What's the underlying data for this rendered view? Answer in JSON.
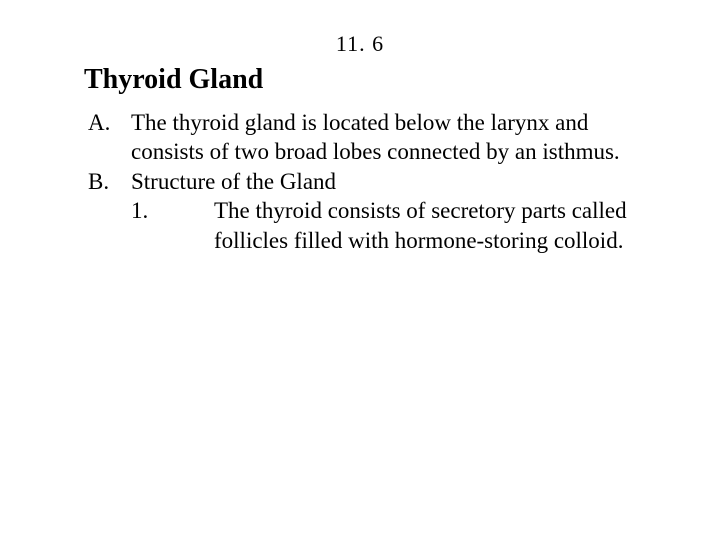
{
  "slide": {
    "number": "11. 6",
    "heading": "Thyroid Gland",
    "items": [
      {
        "marker": "A.",
        "text": "The thyroid gland is located below the larynx and consists of two broad lobes connected by an isthmus."
      },
      {
        "marker": "B.",
        "text": "Structure of the Gland",
        "sub": [
          {
            "marker": "1.",
            "text": "The thyroid consists of secretory parts called follicles filled with hormone-storing colloid."
          }
        ]
      }
    ]
  },
  "style": {
    "background_color": "#ffffff",
    "text_color": "#000000",
    "font_family": "Times New Roman",
    "slide_number_fontsize": 22,
    "heading_fontsize": 28,
    "body_fontsize": 23,
    "line_height": 1.28
  }
}
